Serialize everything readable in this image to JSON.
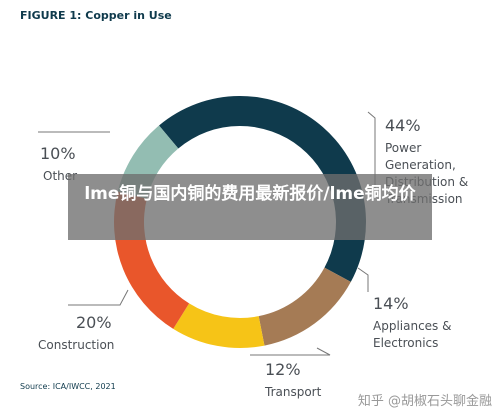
{
  "chart_data": {
    "type": "donut",
    "title": "FIGURE 1: Copper in Use",
    "categories": [
      "Power Generation, Distribution & Transmission",
      "Appliances & Electronics",
      "Transport",
      "Construction",
      "Other"
    ],
    "values": [
      44,
      14,
      12,
      20,
      10
    ],
    "value_labels": [
      "44%",
      "14%",
      "12%",
      "20%",
      "10%"
    ],
    "colors": [
      "#0f3a4c",
      "#a57b55",
      "#f6c417",
      "#e9562b",
      "#93bdb2"
    ],
    "source": "Source: ICA/IWCC, 2021"
  },
  "overlay": {
    "text": "lme铜与国内铜的费用最新报价/lme铜均价"
  },
  "watermark": "知乎 @胡椒石头聊金融"
}
